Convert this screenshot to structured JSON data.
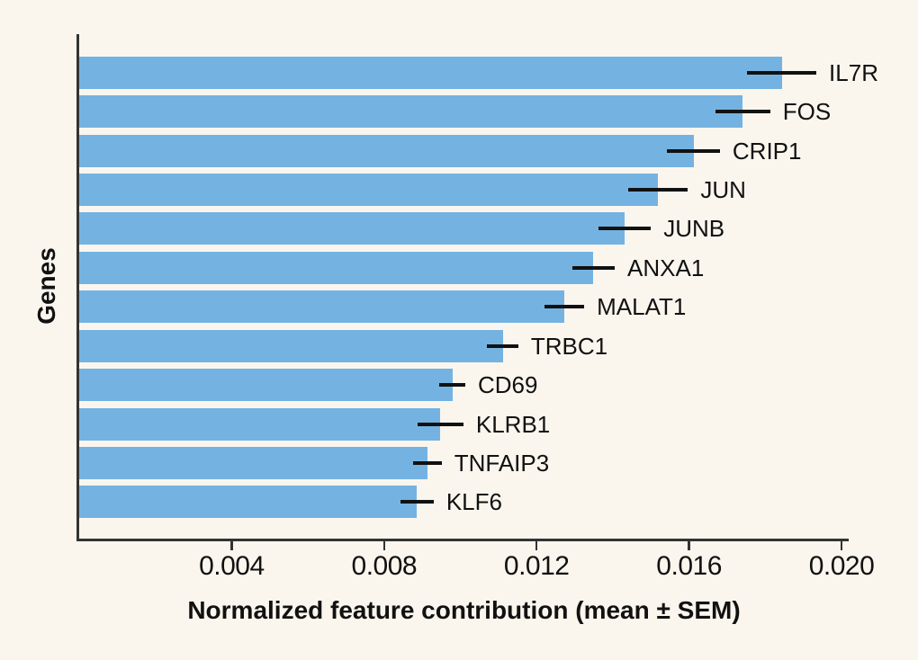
{
  "chart_data": {
    "type": "bar",
    "orientation": "horizontal",
    "title": "",
    "xlabel": "Normalized feature contribution (mean ± SEM)",
    "ylabel": "Genes",
    "categories": [
      "IL7R",
      "FOS",
      "CRIP1",
      "JUN",
      "JUNB",
      "ANXA1",
      "MALAT1",
      "TRBC1",
      "CD69",
      "KLRB1",
      "TNFAIP3",
      "KLF6"
    ],
    "values": [
      0.01843,
      0.01741,
      0.01612,
      0.01519,
      0.01431,
      0.01349,
      0.01273,
      0.01111,
      0.00979,
      0.00948,
      0.00914,
      0.00886
    ],
    "sem": [
      0.00091,
      0.00072,
      0.00069,
      0.00078,
      0.00069,
      0.00056,
      0.00052,
      0.00041,
      0.00034,
      0.0006,
      0.00037,
      0.00044
    ],
    "error_bars": true,
    "xlim": [
      0,
      0.02
    ],
    "xticks": [
      0.004,
      0.008,
      0.012,
      0.016,
      0.02
    ],
    "xtick_labels": [
      "0.004",
      "0.008",
      "0.012",
      "0.016",
      "0.020"
    ],
    "grid": false,
    "legend": null,
    "bar_color": "#74b3e1",
    "error_bar_color": "#111111",
    "axis_color": "#333333",
    "text_color": "#111111",
    "background_color": "#faf6ee"
  }
}
